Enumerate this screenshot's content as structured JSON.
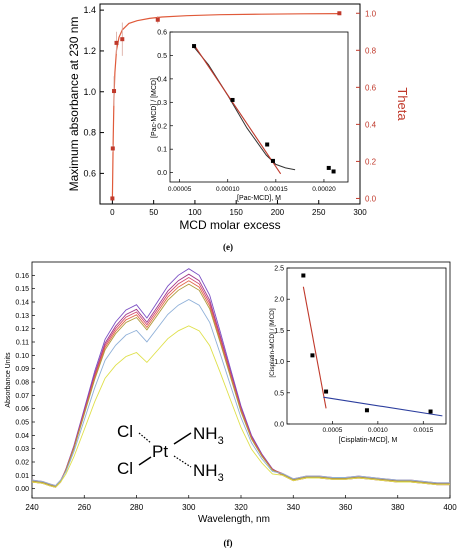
{
  "panel_labels": {
    "top": "(e)",
    "bottom": "(f)"
  },
  "chart_data": [
    {
      "id": "panel-e-main",
      "type": "scatter",
      "xlabel": "MCD molar excess",
      "ylabel": "Maximum absorbance at 230 nm",
      "y2label": "Theta",
      "xlim": [
        -15,
        300
      ],
      "ylim": [
        0.45,
        1.43
      ],
      "y2lim": [
        -0.03,
        1.05
      ],
      "xticks": [
        0,
        50,
        100,
        150,
        200,
        250,
        300
      ],
      "yticks": [
        0.6,
        0.8,
        1.0,
        1.2,
        1.4
      ],
      "y2ticks": [
        0.0,
        0.2,
        0.4,
        0.6,
        0.8,
        1.0
      ],
      "x_tick_labels": [
        "0",
        "50",
        "100",
        "150",
        "200",
        "250",
        "300"
      ],
      "y_tick_labels": [
        "0.6",
        "0.8",
        "1.0",
        "1.2",
        "1.4"
      ],
      "y2_tick_labels": [
        "0.0",
        "0.2",
        "0.4",
        "0.6",
        "0.8",
        "1.0"
      ],
      "colors": {
        "left_axis": "#000000",
        "right_axis": "#c0392b",
        "points": "#c0392b",
        "fit": "#e05a3a"
      },
      "series": [
        {
          "x": [
            0,
            0.5,
            2,
            5,
            12,
            55,
            275
          ],
          "y": [
            0.0,
            0.27,
            0.58,
            0.84,
            0.86,
            0.965,
            1.0
          ],
          "err": [
            0.0,
            0.02,
            0.08,
            0.06,
            0.09,
            0.02,
            0.01
          ]
        }
      ],
      "fit_curve": {
        "x": [
          0,
          1,
          2,
          3,
          5,
          8,
          12,
          20,
          30,
          45,
          60,
          90,
          130,
          180,
          230,
          275
        ],
        "y": [
          0.0,
          0.32,
          0.55,
          0.68,
          0.8,
          0.87,
          0.91,
          0.945,
          0.96,
          0.972,
          0.98,
          0.987,
          0.992,
          0.995,
          0.997,
          0.998
        ]
      }
    },
    {
      "id": "panel-e-inset",
      "type": "scatter",
      "xlabel": "[Pac-MCD], M",
      "ylabel": "[Pac-MCD] / [MCD]",
      "xlim": [
        4e-05,
        0.000225
      ],
      "ylim": [
        -0.04,
        0.6
      ],
      "xticks": [
        5e-05,
        0.0001,
        0.00015,
        0.0002
      ],
      "yticks": [
        0.0,
        0.1,
        0.2,
        0.3,
        0.4,
        0.5,
        0.6
      ],
      "x_tick_labels": [
        "0.00005",
        "0.00010",
        "0.00015",
        "0.00020"
      ],
      "y_tick_labels": [
        "0.0",
        "0.1",
        "0.2",
        "0.3",
        "0.4",
        "0.5",
        "0.6"
      ],
      "colors": {
        "points": "#000000",
        "linear_fit": "#c0392b",
        "curve": "#333333"
      },
      "series": [
        {
          "x": [
            6.5e-05,
            0.000105,
            0.000141,
            0.000147,
            0.000205,
            0.00021
          ],
          "y": [
            0.54,
            0.31,
            0.12,
            0.05,
            0.02,
            0.005
          ]
        }
      ],
      "linear_fit": {
        "x": [
          6.5e-05,
          0.000155
        ],
        "y": [
          0.545,
          -0.005
        ]
      },
      "curve": {
        "x": [
          6.5e-05,
          8e-05,
          0.0001,
          0.00012,
          0.00014,
          0.00015,
          0.00016,
          0.00017
        ],
        "y": [
          0.535,
          0.46,
          0.33,
          0.19,
          0.075,
          0.035,
          0.02,
          0.012
        ]
      }
    },
    {
      "id": "panel-f-main",
      "type": "line",
      "xlabel": "Wavelength, nm",
      "ylabel": "Absorbance Units",
      "xlim": [
        240,
        400
      ],
      "ylim": [
        -0.007,
        0.17
      ],
      "xticks": [
        240,
        260,
        280,
        300,
        320,
        340,
        360,
        380,
        400
      ],
      "yticks": [
        0.0,
        0.01,
        0.02,
        0.03,
        0.04,
        0.05,
        0.06,
        0.07,
        0.08,
        0.09,
        0.1,
        0.11,
        0.12,
        0.13,
        0.14,
        0.15,
        0.16
      ],
      "x_tick_labels": [
        "240",
        "260",
        "280",
        "300",
        "320",
        "340",
        "360",
        "380",
        "400"
      ],
      "y_tick_labels": [
        "0.00",
        "0.01",
        "0.02",
        "0.03",
        "0.04",
        "0.05",
        "0.06",
        "0.07",
        "0.08",
        "0.09",
        "0.10",
        "0.11",
        "0.12",
        "0.13",
        "0.14",
        "0.15",
        "0.16"
      ],
      "x": [
        240,
        244,
        247,
        249,
        251,
        253,
        256,
        260,
        264,
        268,
        272,
        276,
        280,
        284,
        288,
        292,
        296,
        300,
        304,
        308,
        312,
        316,
        320,
        324,
        328,
        332,
        336,
        340,
        345,
        350,
        355,
        360,
        365,
        370,
        375,
        380,
        385,
        390,
        395,
        400
      ],
      "base_shape": [
        0.005,
        0.004,
        0.002,
        0.001,
        0.005,
        0.015,
        0.032,
        0.06,
        0.088,
        0.112,
        0.125,
        0.134,
        0.138,
        0.128,
        0.14,
        0.152,
        0.16,
        0.165,
        0.16,
        0.145,
        0.118,
        0.09,
        0.062,
        0.04,
        0.026,
        0.015,
        0.01,
        0.006,
        0.008,
        0.008,
        0.007,
        0.007,
        0.008,
        0.007,
        0.006,
        0.005,
        0.005,
        0.004,
        0.003,
        0.003
      ],
      "series": [
        {
          "color": "#7b4fc4",
          "scale": 1.0
        },
        {
          "color": "#a23a8c",
          "scale": 0.975
        },
        {
          "color": "#d24a70",
          "scale": 0.96
        },
        {
          "color": "#e26a4a",
          "scale": 0.945
        },
        {
          "color": "#b09a3a",
          "scale": 0.93
        },
        {
          "color": "#8fb0d8",
          "scale": 0.86
        },
        {
          "color": "#dfe04a",
          "scale": 0.74
        }
      ],
      "structure": {
        "ligand_top": "Cl",
        "ligand_bottom": "Cl",
        "metal": "Pt",
        "amine_top": "NH",
        "amine_bottom": "NH",
        "subscript": "3"
      }
    },
    {
      "id": "panel-f-inset",
      "type": "scatter",
      "xlabel": "[Cisplatin-MCD], M",
      "ylabel": "[Cisplatin-MCD] / [MCD]",
      "xlim": [
        0.0,
        0.00175
      ],
      "ylim": [
        0.0,
        2.5
      ],
      "xticks": [
        0.0005,
        0.001,
        0.0015
      ],
      "yticks": [
        0.0,
        0.5,
        1.0,
        1.5,
        2.0,
        2.5
      ],
      "x_tick_labels": [
        "0.0005",
        "0.0010",
        "0.0015"
      ],
      "y_tick_labels": [
        "0.0",
        "0.5",
        "1.0",
        "1.5",
        "2.0",
        "2.5"
      ],
      "colors": {
        "points": "#000000",
        "line1": "#c0392b",
        "line2": "#2c3e9e"
      },
      "series": [
        {
          "x": [
            0.00018,
            0.00028,
            0.00043,
            0.00088,
            0.00158
          ],
          "y": [
            2.38,
            1.1,
            0.52,
            0.22,
            0.2
          ]
        }
      ],
      "line1": {
        "x": [
          0.00018,
          0.00043
        ],
        "y": [
          2.2,
          0.25
        ]
      },
      "line2": {
        "x": [
          0.0004,
          0.00171
        ],
        "y": [
          0.43,
          0.13
        ]
      }
    }
  ]
}
